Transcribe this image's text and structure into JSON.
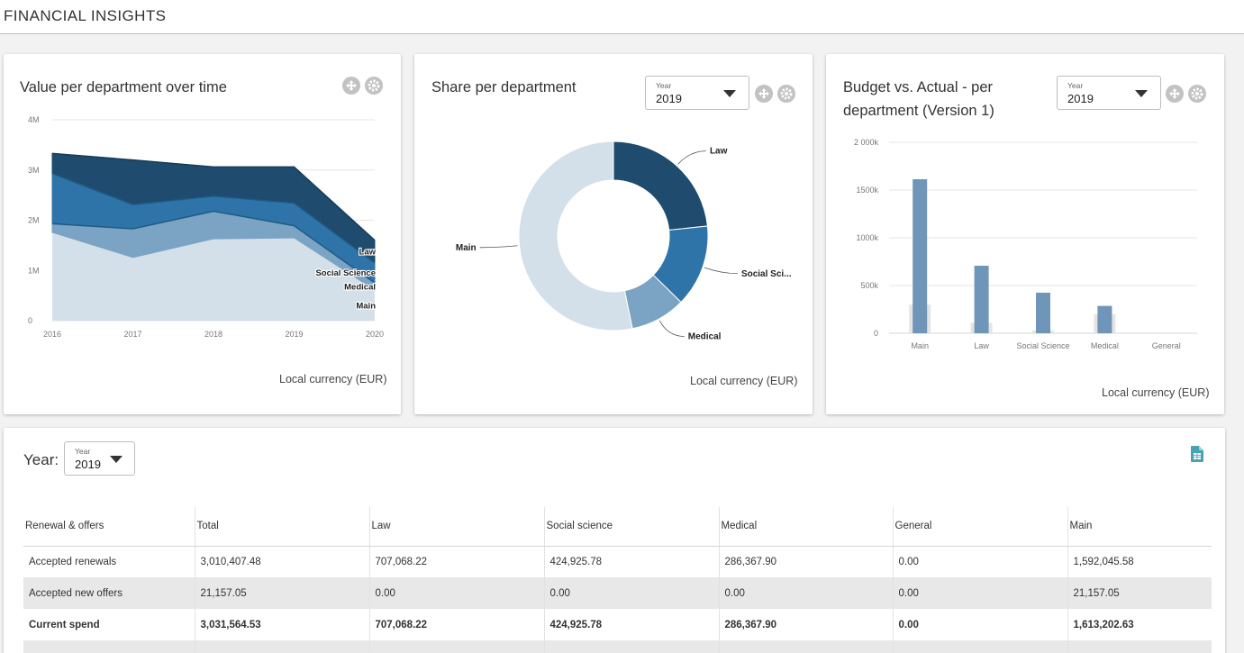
{
  "page": {
    "title": "FINANCIAL INSIGHTS"
  },
  "colors": {
    "dark": "#1f4b6e",
    "medium": "#2e74a8",
    "light": "#7aa3c4",
    "pale": "#d3e0ea",
    "bar": "#6f95b8",
    "budget": "#e4e4e4"
  },
  "icons": {
    "move": "move-icon",
    "settings": "gear-icon",
    "export": "spreadsheet-export-icon",
    "dropdown": "caret-down-icon"
  },
  "area_card": {
    "title": "Value per department over time",
    "currency": "Local currency (EUR)",
    "chart_data": {
      "type": "area",
      "stacked": true,
      "title": "Value per department over time",
      "x": [
        2016,
        2017,
        2018,
        2019,
        2020
      ],
      "y_ticks": [
        "0",
        "1M",
        "2M",
        "3M",
        "4M"
      ],
      "ylim": [
        0,
        4000000
      ],
      "series": [
        {
          "name": "Main",
          "values": [
            1750000,
            1250000,
            1620000,
            1640000,
            600000
          ]
        },
        {
          "name": "Medical",
          "values": [
            180000,
            580000,
            560000,
            250000,
            150000
          ]
        },
        {
          "name": "Social Science",
          "values": [
            1000000,
            480000,
            300000,
            450000,
            400000
          ]
        },
        {
          "name": "Law",
          "values": [
            400000,
            890000,
            580000,
            720000,
            450000
          ]
        }
      ],
      "grid": true
    }
  },
  "donut_card": {
    "title": "Share per department",
    "currency": "Local currency (EUR)",
    "year_select": {
      "label": "Year",
      "value": "2019"
    },
    "chart_data": {
      "type": "pie",
      "donut": true,
      "slices": [
        {
          "name": "Law",
          "label": "Law",
          "value": 707068.22
        },
        {
          "name": "Social Science",
          "label": "Social Sci...",
          "value": 424925.78
        },
        {
          "name": "Medical",
          "label": "Medical",
          "value": 286367.9
        },
        {
          "name": "Main",
          "label": "Main",
          "value": 1613202.63
        }
      ]
    }
  },
  "bar_card": {
    "title_line1": "Budget vs. Actual - per",
    "title_line2": "department (Version 1)",
    "currency": "Local currency (EUR)",
    "year_select": {
      "label": "Year",
      "value": "2019"
    },
    "chart_data": {
      "type": "bar",
      "categories": [
        "Main",
        "Law",
        "Social Science",
        "Medical",
        "General"
      ],
      "y_ticks": [
        "0",
        "500k",
        "1000k",
        "1500k",
        "2 000k"
      ],
      "ylim": [
        0,
        2000000
      ],
      "series": [
        {
          "name": "Budget",
          "values": [
            300000,
            110000,
            30000,
            200000,
            0
          ]
        },
        {
          "name": "Actual",
          "values": [
            1613202,
            707068,
            424926,
            286368,
            0
          ]
        }
      ],
      "grid": true
    }
  },
  "table_card": {
    "year_label": "Year:",
    "year_select": {
      "label": "Year",
      "value": "2019"
    },
    "columns": [
      "Renewal & offers",
      "Total",
      "Law",
      "Social science",
      "Medical",
      "General",
      "Main"
    ],
    "rows": [
      [
        "Accepted renewals",
        "3,010,407.48",
        "707,068.22",
        "424,925.78",
        "286,367.90",
        "0.00",
        "1,592,045.58"
      ],
      [
        "Accepted new offers",
        "21,157.05",
        "0.00",
        "0.00",
        "0.00",
        "0.00",
        "21,157.05"
      ],
      [
        "Current spend",
        "3,031,564.53",
        "707,068.22",
        "424,925.78",
        "286,367.90",
        "0.00",
        "1,613,202.63"
      ]
    ]
  }
}
